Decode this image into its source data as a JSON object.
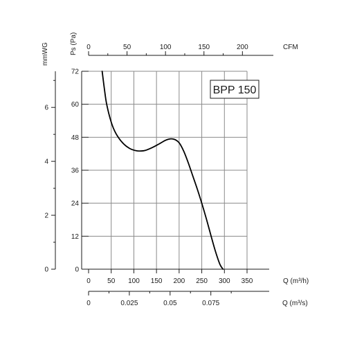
{
  "chart_data": {
    "type": "line",
    "title": "BPP 150",
    "series": [
      {
        "x": [
          30,
          35,
          40,
          50,
          60,
          75,
          90,
          105,
          115,
          125,
          140,
          155,
          170,
          180,
          190,
          200,
          210,
          220,
          230,
          240,
          250,
          260,
          270,
          280,
          290,
          297
        ],
        "y": [
          72.0,
          65.5,
          60.0,
          53.5,
          49.5,
          46.0,
          44.0,
          43.1,
          43.0,
          43.2,
          44.2,
          45.5,
          46.9,
          47.4,
          47.2,
          46.0,
          43.0,
          38.8,
          34.0,
          29.2,
          24.0,
          18.4,
          12.4,
          6.6,
          1.8,
          0.0
        ]
      }
    ],
    "axes": {
      "x_bottom": {
        "unit_label": "Q (m³/h)",
        "range": [
          0,
          350
        ],
        "ticks": [
          0,
          50,
          100,
          150,
          200,
          250,
          300,
          350
        ],
        "tick_labels": [
          "0",
          "50",
          "100",
          "150",
          "200",
          "250",
          "300",
          "350"
        ]
      },
      "x_second": {
        "unit_label": "Q (m³/s)",
        "range": [
          0,
          0.0972
        ],
        "ticks": [
          0,
          0.025,
          0.05,
          0.075
        ],
        "tick_labels": [
          "0",
          "0.025",
          "0.05",
          "0.075"
        ],
        "minor_ticks": [
          0.0125,
          0.0375,
          0.0625,
          0.0875
        ]
      },
      "x_top": {
        "unit_label": "CFM",
        "range": [
          0,
          206
        ],
        "ticks": [
          0,
          50,
          100,
          150,
          200
        ],
        "tick_labels": [
          "0",
          "50",
          "100",
          "150",
          "200"
        ],
        "minor_ticks": [
          25,
          75,
          125,
          175
        ]
      },
      "y_left": {
        "unit_label": "Ps (Pa)",
        "range": [
          0,
          72
        ],
        "ticks": [
          0,
          12,
          24,
          36,
          48,
          60,
          72
        ],
        "tick_labels": [
          "0",
          "12",
          "24",
          "36",
          "48",
          "60",
          "72"
        ]
      },
      "y_far_left": {
        "unit_label": "mmWG",
        "range": [
          0,
          7.34
        ],
        "ticks": [
          0,
          2,
          4,
          6
        ],
        "tick_labels": [
          "0",
          "2",
          "4",
          "6"
        ],
        "minor_ticks": [
          1,
          3,
          5,
          7
        ]
      }
    },
    "grid": true,
    "legend": "none",
    "colors": {
      "curve": "#000000",
      "grid": "#8a8a8a",
      "axis": "#1a1a1a"
    }
  }
}
